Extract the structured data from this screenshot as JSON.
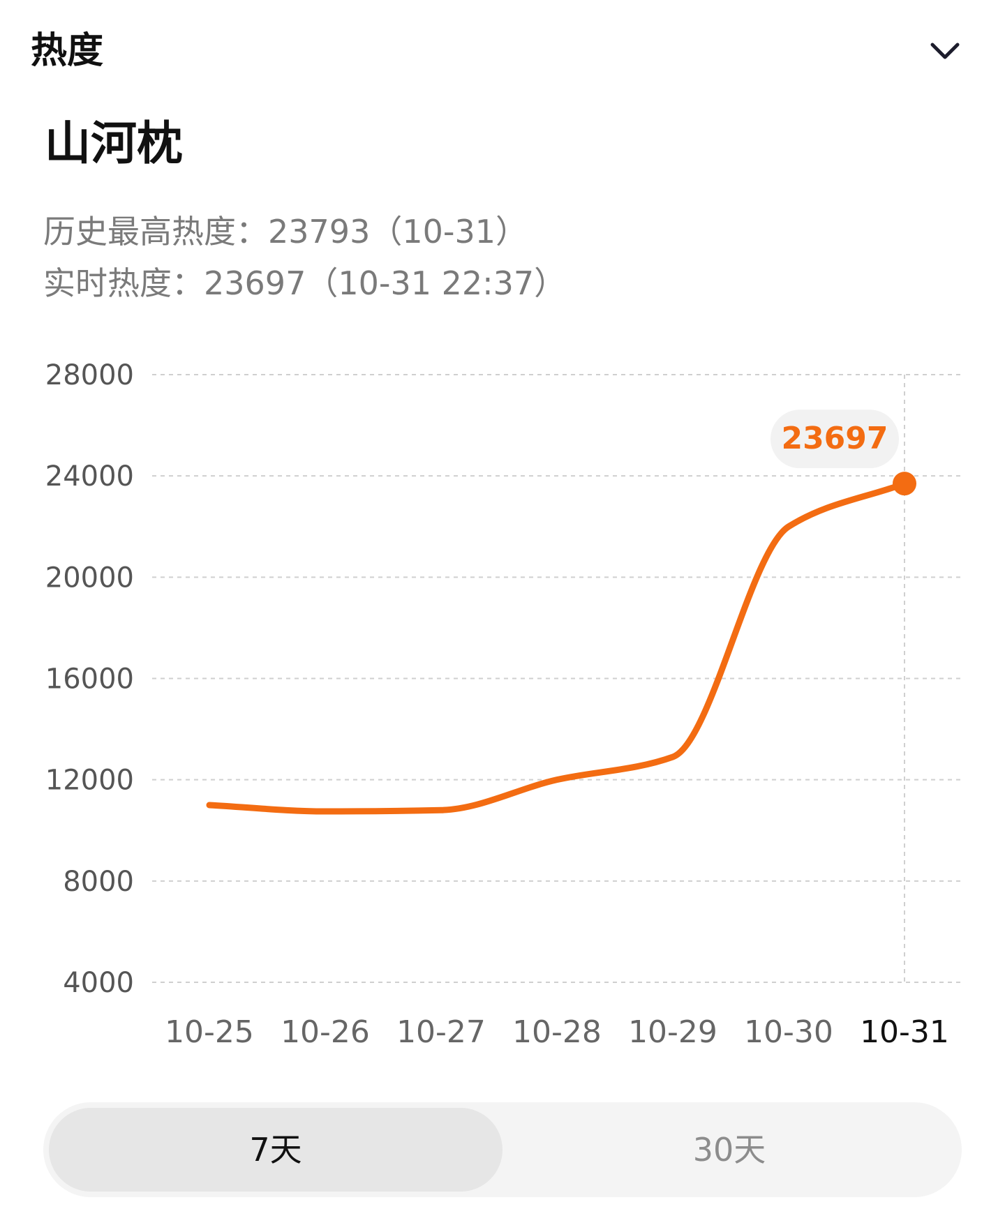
{
  "header": {
    "title": "热度",
    "collapse_icon": "chevron-down-icon"
  },
  "subject": {
    "title": "山河枕"
  },
  "stats": {
    "peak_label": "历史最高热度：",
    "peak_value": "23793（10-31）",
    "live_label": "实时热度：",
    "live_value": "23697（10-31 22:37）"
  },
  "colors": {
    "line": "#f36c12",
    "grid": "#cfcfcf",
    "callout_bg": "#f2f2f2"
  },
  "chart_data": {
    "type": "line",
    "x": [
      "10-25",
      "10-26",
      "10-27",
      "10-28",
      "10-29",
      "10-30",
      "10-31"
    ],
    "series": [
      {
        "values": [
          11000,
          10750,
          10800,
          12000,
          12900,
          22000,
          23697
        ]
      }
    ],
    "y_ticks": [
      "28000",
      "24000",
      "20000",
      "16000",
      "12000",
      "8000",
      "4000"
    ],
    "ylim": [
      4000,
      28000
    ],
    "highlight_index": 6,
    "highlight_label": "23697",
    "grid": true
  },
  "range_switch": {
    "options": [
      {
        "label": "7天",
        "active": true
      },
      {
        "label": "30天",
        "active": false
      }
    ]
  }
}
